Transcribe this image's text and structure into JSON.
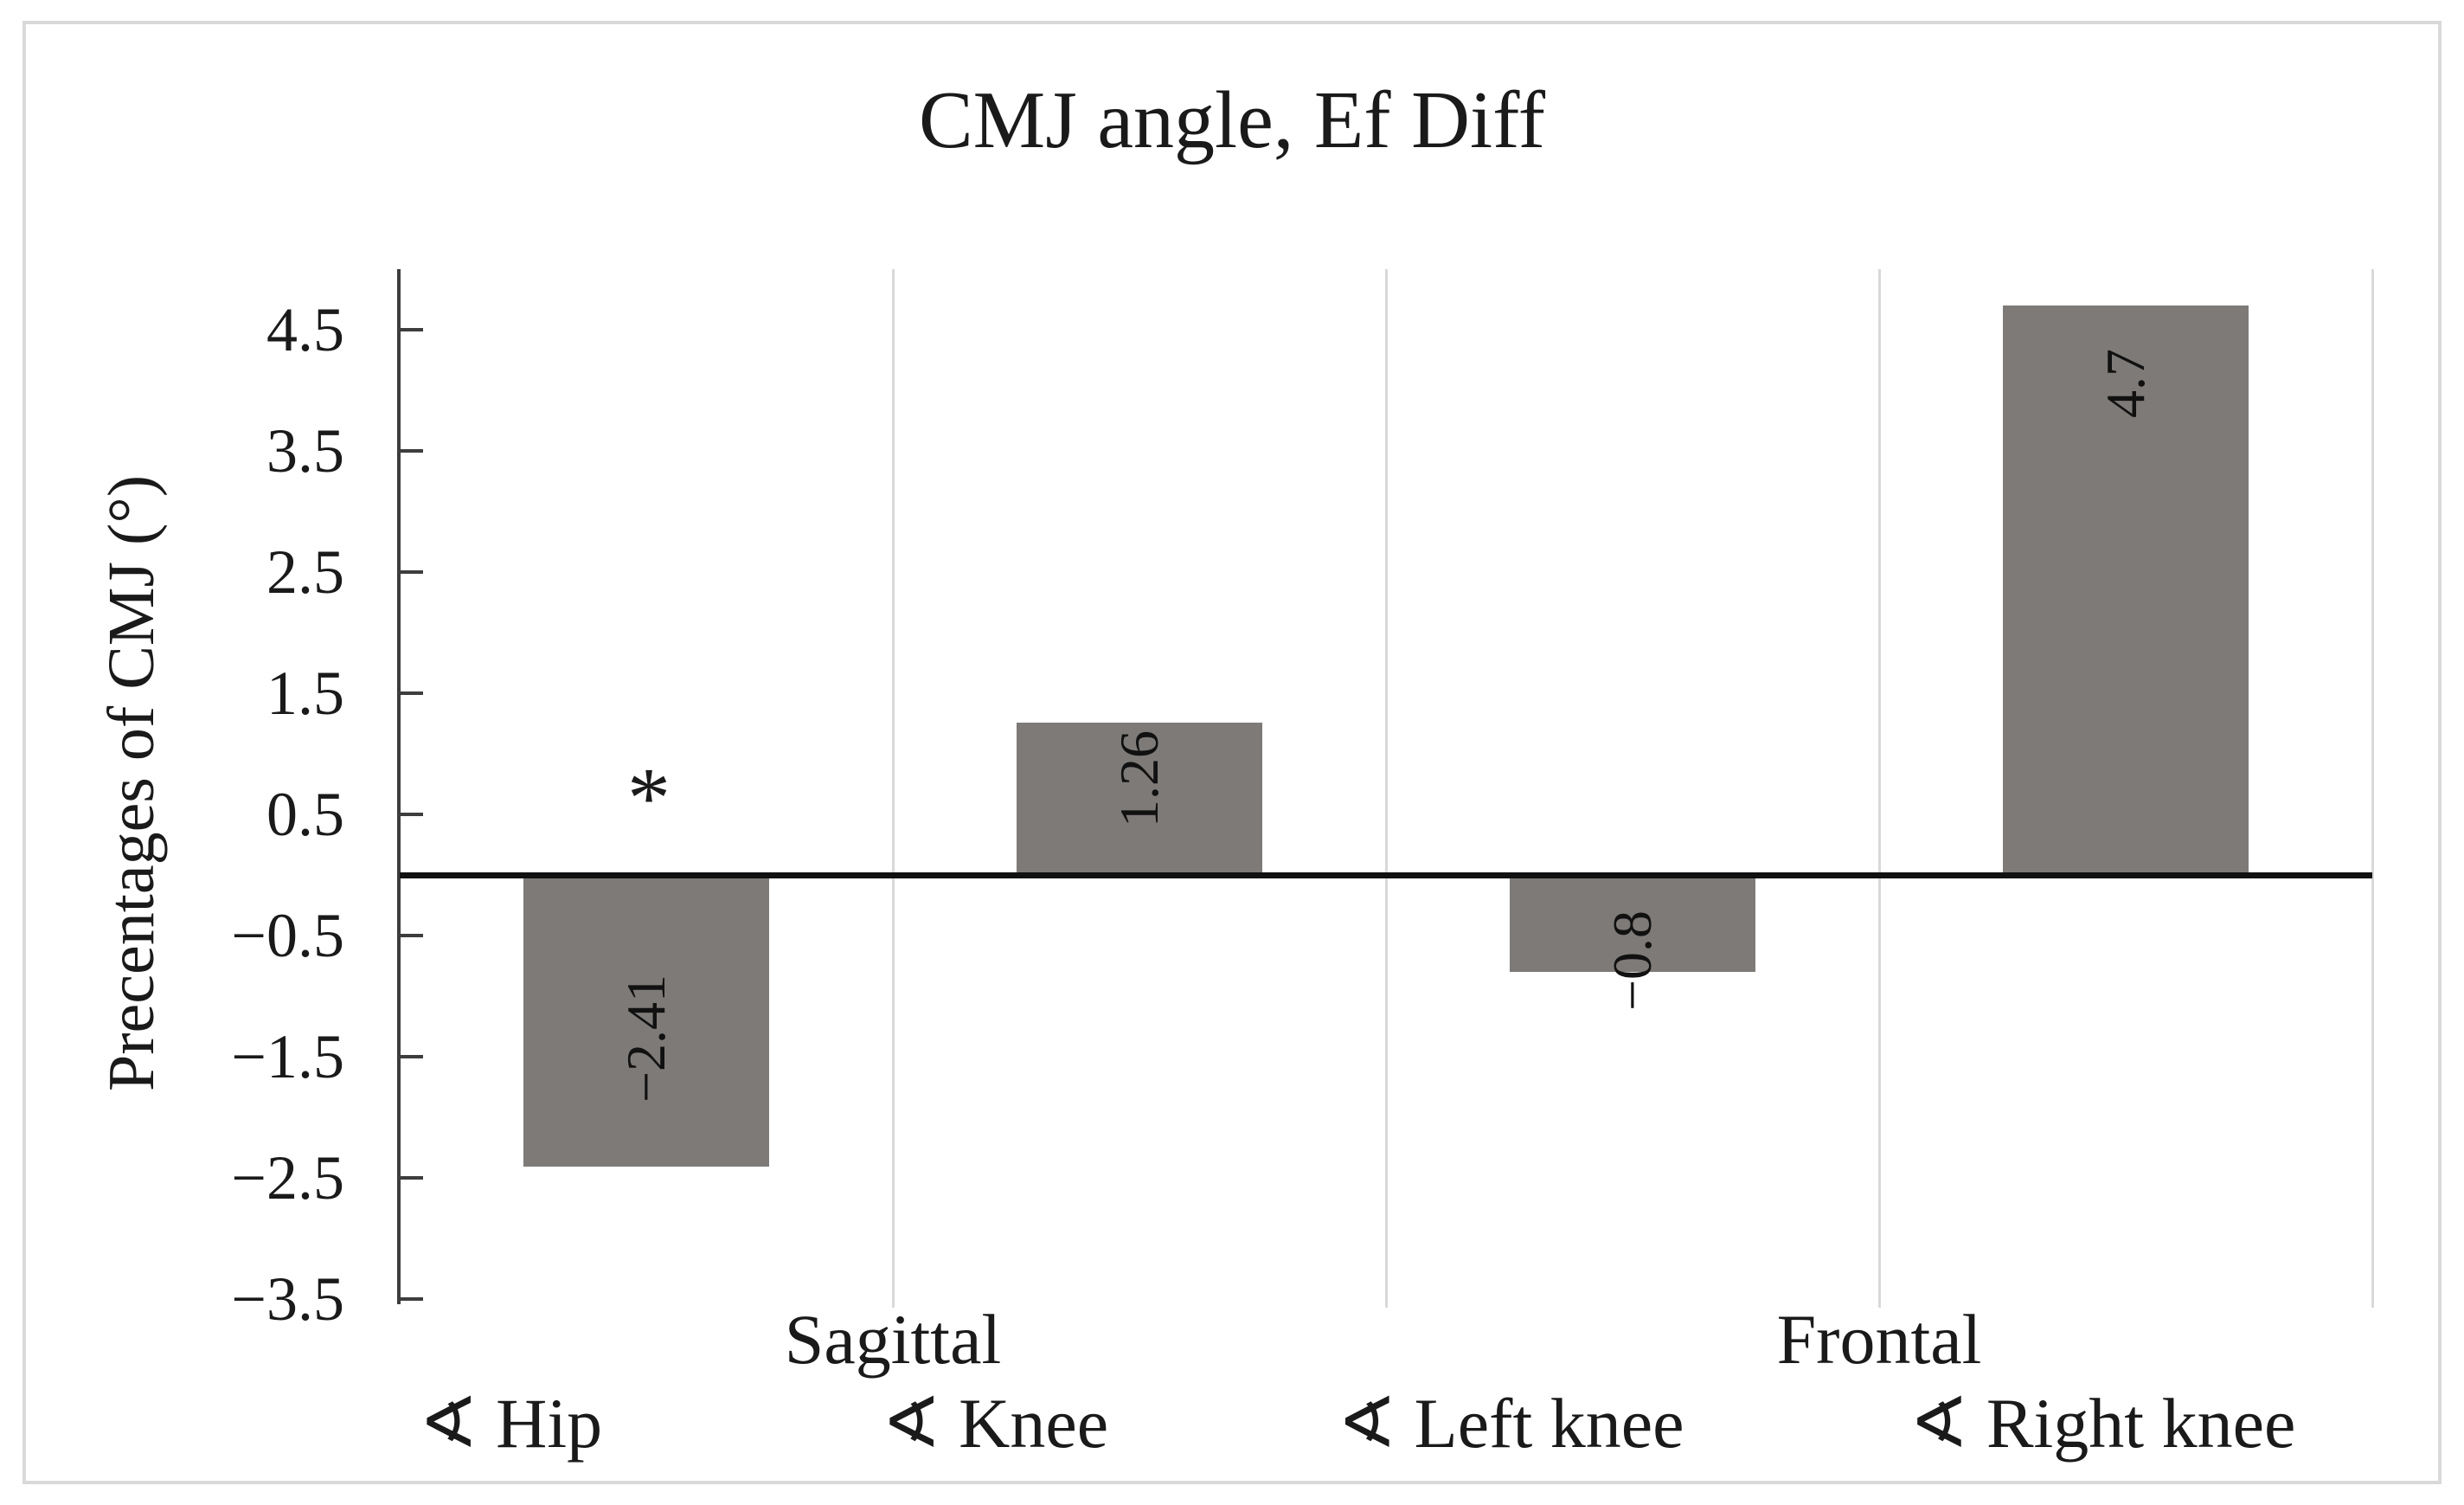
{
  "figure": {
    "title": "CMJ angle, Ef Diff"
  },
  "chart_data": {
    "type": "bar",
    "title": "CMJ angle, Ef Diff",
    "xlabel": "",
    "ylabel": "Precentages of CMJ (°)",
    "ylim": [
      -3.5,
      5.0
    ],
    "ytick_step": 1.0,
    "yticks": [
      4.5,
      3.5,
      2.5,
      1.5,
      0.5,
      -0.5,
      -1.5,
      -2.5,
      -3.5
    ],
    "ytick_labels": [
      "4.5",
      "3.5",
      "2.5",
      "1.5",
      "0.5",
      "−0.5",
      "−1.5",
      "−2.5",
      "−3.5"
    ],
    "groups": [
      {
        "label": "Sagittal",
        "categories": [
          "∢ Hip",
          "∢ Knee"
        ]
      },
      {
        "label": "Frontal",
        "categories": [
          "∢ Left knee",
          "∢ Right knee"
        ]
      }
    ],
    "categories": [
      "∢ Hip",
      "∢ Knee",
      "∢ Left knee",
      "∢ Right knee"
    ],
    "values": [
      -2.41,
      1.26,
      -0.8,
      4.7
    ],
    "data_labels": [
      "−2.41",
      "1.26",
      "−0.8",
      "4.7"
    ],
    "data_label_orientation": "rotated-90-bottom-to-top",
    "annotations": [
      {
        "text": "*",
        "above_category": "∢ Hip"
      }
    ],
    "bar_color": "#7d7a78",
    "grid": "vertical category separators",
    "legend": "none"
  },
  "colors": {
    "bar": "#7d7a78",
    "zero_line": "#111111",
    "axis": "#3d3d3d",
    "gridline": "#d9d9d9",
    "figure_border": "#d9d9d9",
    "text": "#1a1a1a",
    "background": "#ffffff"
  }
}
